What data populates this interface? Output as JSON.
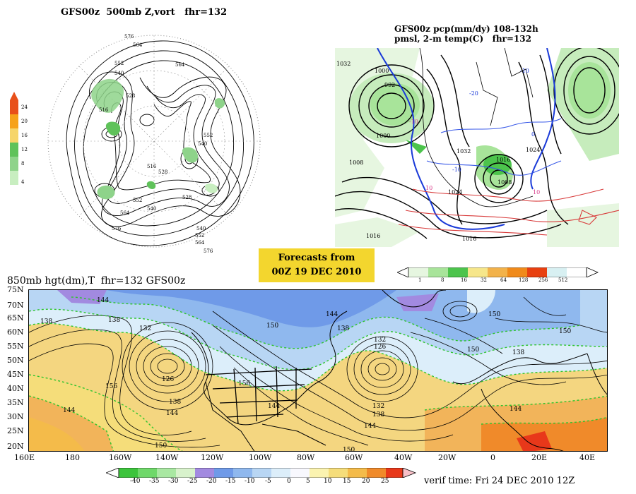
{
  "panel_500mb": {
    "title": "GFS00z  500mb Z,vort   fhr=132",
    "colorbar": {
      "labels": [
        "24",
        "20",
        "16",
        "12",
        "8",
        "4"
      ],
      "colors": [
        "#e8501a",
        "#f6a21a",
        "#f6d56a",
        "#5fc25a",
        "#8ed38a",
        "#c8eec0"
      ]
    },
    "contour_labels": [
      "576",
      "564",
      "552",
      "540",
      "528",
      "516",
      "528",
      "540",
      "552",
      "564",
      "576",
      "540",
      "552",
      "564",
      "528",
      "516",
      "540",
      "552",
      "564",
      "576"
    ]
  },
  "panel_precip": {
    "title_line1": "GFS00z pcp(mm/dy) 108-132h",
    "title_line2": "pmsl, 2-m temp(C)   fhr=132",
    "isobar_labels": [
      "1032",
      "1000",
      "992",
      "1008",
      "1000",
      "1032",
      "1024",
      "1016",
      "1016",
      "1008",
      "1016",
      "1024"
    ],
    "temp_labels": [
      "-10",
      "10",
      "0",
      "-20",
      "-10",
      "-10",
      "10"
    ],
    "colorbar": {
      "labels": [
        "1",
        "8",
        "16",
        "32",
        "64",
        "128",
        "256",
        "512"
      ],
      "colors": [
        "#e6f6e0",
        "#a8e49a",
        "#4cc44c",
        "#f6e68a",
        "#f2b24a",
        "#f08a1a",
        "#e84010",
        "#d8f0f2"
      ]
    }
  },
  "forecast_box": {
    "line1": "Forecasts from",
    "line2": "00Z 19 DEC 2010"
  },
  "panel_850mb": {
    "title": "850mb hgt(dm),T  fhr=132 GFS00z",
    "lat_labels": [
      "75N",
      "70N",
      "65N",
      "60N",
      "55N",
      "50N",
      "45N",
      "40N",
      "35N",
      "30N",
      "25N",
      "20N"
    ],
    "lon_labels": [
      "160E",
      "180",
      "160W",
      "140W",
      "120W",
      "100W",
      "80W",
      "60W",
      "40W",
      "20W",
      "0",
      "20E",
      "40E"
    ],
    "height_labels": [
      "144",
      "138",
      "132",
      "126",
      "138",
      "144",
      "150",
      "156",
      "144",
      "138",
      "150",
      "144",
      "138",
      "132",
      "126",
      "132",
      "138",
      "144",
      "150",
      "156",
      "144",
      "150",
      "150",
      "150",
      "144",
      "138"
    ],
    "colorbar": {
      "labels": [
        "-40",
        "-35",
        "-30",
        "-25",
        "-20",
        "-15",
        "-10",
        "-5",
        "0",
        "5",
        "10",
        "15",
        "20",
        "25"
      ],
      "colors": [
        "#3cc43c",
        "#6fd86a",
        "#a9e8a2",
        "#d8f2cc",
        "#a28ae0",
        "#6f9ae8",
        "#8fb8ee",
        "#b8d6f4",
        "#dceefa",
        "#f8f8fe",
        "#fbf3b0",
        "#f5dd7a",
        "#f4bb4a",
        "#f08a2a",
        "#e8381a"
      ]
    },
    "verif_time": "verif time: Fri 24 DEC 2010 12Z"
  },
  "colors": {
    "cold_blue": "#7fa8e8",
    "cool_blue": "#b6d2f6",
    "warm_yellow": "#f4d680",
    "warm_orange": "#f2b45a",
    "forecast_box_bg": "#f3d62e",
    "green_contour": "#2ec42e"
  }
}
